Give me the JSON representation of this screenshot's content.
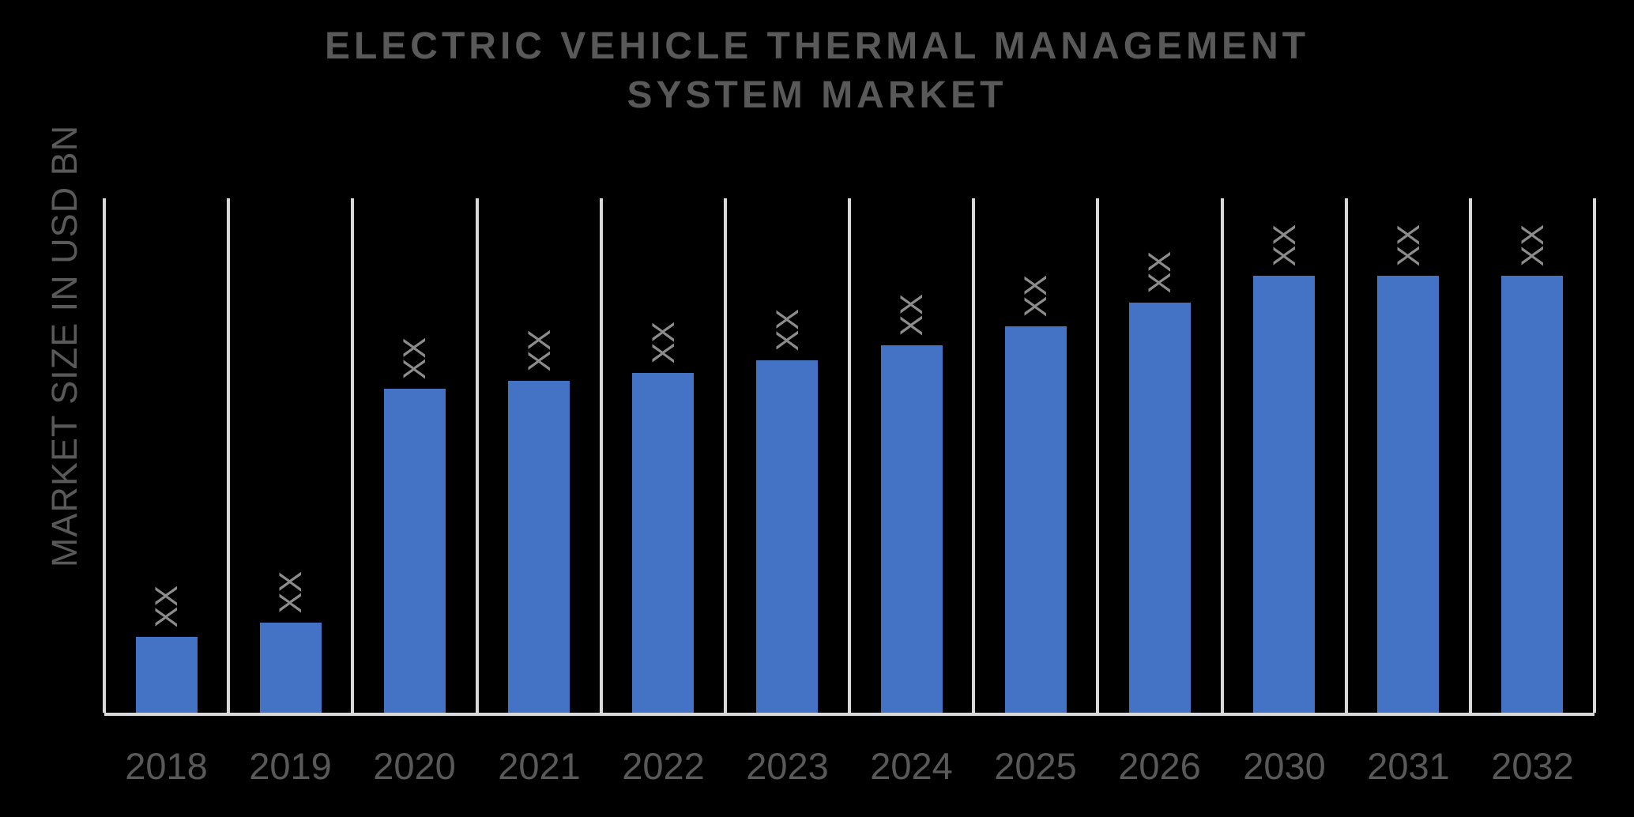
{
  "title": {
    "line1": "ELECTRIC VEHICLE THERMAL MANAGEMENT",
    "line2": "SYSTEM MARKET"
  },
  "y_axis_label": "MARKET SIZE IN USD BN",
  "colors": {
    "background": "#000000",
    "bar": "#4472C4",
    "grid": "#D9D9D9",
    "title_text": "#595959",
    "axis_text": "#595959",
    "data_label_text": "#8C8C8C"
  },
  "chart_data": {
    "type": "bar",
    "title": "ELECTRIC VEHICLE THERMAL MANAGEMENT SYSTEM MARKET",
    "xlabel": "",
    "ylabel": "MARKET SIZE IN USD BN",
    "legend": "none",
    "grid": "vertical-separators-only",
    "y_tick_labels": "none",
    "categories": [
      "2018",
      "2019",
      "2020",
      "2021",
      "2022",
      "2023",
      "2024",
      "2025",
      "2026",
      "2030",
      "2031",
      "2032"
    ],
    "data_labels": [
      "XX",
      "XX",
      "XX",
      "XX",
      "XX",
      "XX",
      "XX",
      "XX",
      "XX",
      "XX",
      "XX",
      "XX"
    ],
    "data_label_rotation_deg": 90,
    "values_note": "numeric values masked as XX in source image; bar heights given as fraction of plot height",
    "bar_height_fraction_of_plot": [
      0.147,
      0.175,
      0.63,
      0.645,
      0.661,
      0.685,
      0.714,
      0.751,
      0.797,
      0.849,
      0.849,
      0.849
    ]
  }
}
